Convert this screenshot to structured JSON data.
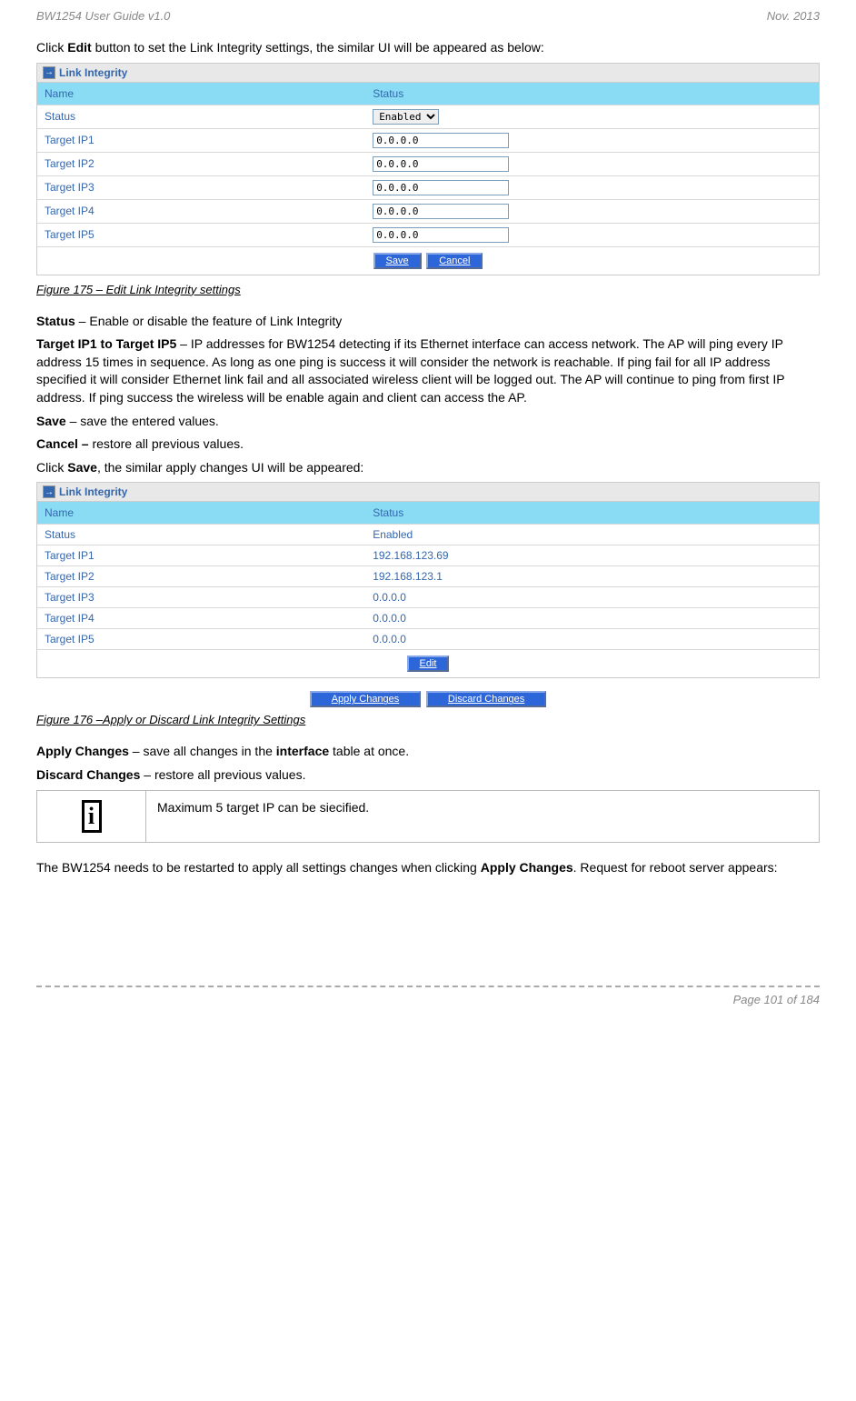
{
  "page": {
    "header_left": "BW1254 User Guide v1.0",
    "header_right": "Nov.  2013",
    "footer_page": "Page 101 of 184"
  },
  "intro": "Click <b>Edit</b> button to set the Link Integrity settings, the similar UI will be appeared as below:",
  "panel1": {
    "title": "Link Integrity",
    "col_name": "Name",
    "col_status": "Status",
    "rows": [
      {
        "label": "Status",
        "type": "select",
        "value": "Enabled"
      },
      {
        "label": "Target IP1",
        "type": "input",
        "value": "0.0.0.0"
      },
      {
        "label": "Target IP2",
        "type": "input",
        "value": "0.0.0.0"
      },
      {
        "label": "Target IP3",
        "type": "input",
        "value": "0.0.0.0"
      },
      {
        "label": "Target IP4",
        "type": "input",
        "value": "0.0.0.0"
      },
      {
        "label": "Target IP5",
        "type": "input",
        "value": "0.0.0.0"
      }
    ],
    "save_btn": "Save",
    "cancel_btn": "Cancel"
  },
  "caption1": "Figure 175 – Edit  Link Integrity settings",
  "definitions": [
    "<b>Status</b> – Enable or disable the feature of Link Integrity",
    "<b>Target IP1 to Target IP5</b> – IP addresses for BW1254 detecting if its Ethernet interface can access network. The AP will ping every IP address 15 times in sequence. As long as one ping is success it will consider the network is reachable. If ping fail for all IP address specified  it will consider Ethernet link fail and all associated wireless client will be logged out. The AP will continue to ping from first IP address. If ping success the wireless will be enable again and client can access the AP.",
    "<b>Save</b> – save the entered values.",
    "<b>Cancel –</b> restore all previous values.",
    "Click <b>Save</b>, the similar apply changes UI will be appeared:"
  ],
  "panel2": {
    "title": "Link Integrity",
    "col_name": "Name",
    "col_status": "Status",
    "rows": [
      {
        "label": "Status",
        "value": "Enabled"
      },
      {
        "label": "Target IP1",
        "value": "192.168.123.69"
      },
      {
        "label": "Target IP2",
        "value": "192.168.123.1"
      },
      {
        "label": "Target IP3",
        "value": "0.0.0.0"
      },
      {
        "label": "Target IP4",
        "value": "0.0.0.0"
      },
      {
        "label": "Target IP5",
        "value": "0.0.0.0"
      }
    ],
    "edit_btn": "Edit"
  },
  "apply_btn": "Apply Changes",
  "discard_btn": "Discard Changes",
  "caption2": "Figure 176 –Apply or Discard Link Integrity Settings",
  "post": [
    "<b>Apply Changes</b> – save all changes in the <b>interface</b> table at once.",
    "<b>Discard Changes</b> – restore all previous values."
  ],
  "note": "Maximum 5 target IP can be siecified.",
  "closing": "The BW1254 needs to be restarted to apply all settings changes when clicking <b>Apply Changes</b>. Request for reboot server appears:"
}
